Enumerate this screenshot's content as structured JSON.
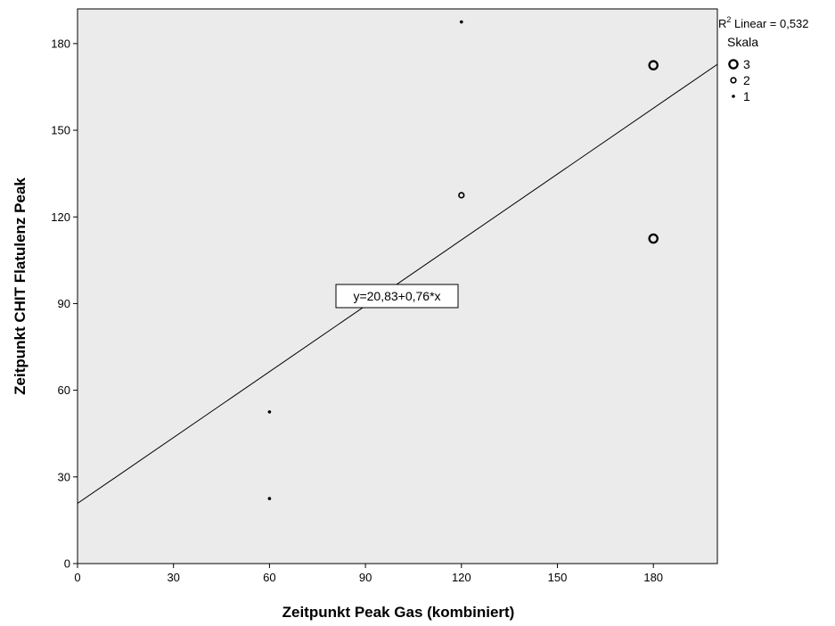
{
  "chart_data": {
    "type": "scatter",
    "xlabel": "Zeitpunkt Peak Gas (kombiniert)",
    "ylabel": "Zeitpunkt CHIT Flatulenz Peak",
    "xlim": [
      0,
      200
    ],
    "ylim": [
      0,
      192
    ],
    "x_ticks": [
      0,
      30,
      60,
      90,
      120,
      150,
      180
    ],
    "y_ticks": [
      0,
      30,
      60,
      90,
      120,
      150,
      180
    ],
    "grid": false,
    "plot_background": "#ebebeb",
    "points": [
      {
        "x": 60,
        "y": 22.5,
        "skala": 1
      },
      {
        "x": 60,
        "y": 52.5,
        "skala": 1
      },
      {
        "x": 120,
        "y": 187.5,
        "skala": 1
      },
      {
        "x": 120,
        "y": 127.5,
        "skala": 2
      },
      {
        "x": 180,
        "y": 172.5,
        "skala": 3
      },
      {
        "x": 180,
        "y": 112.5,
        "skala": 3
      }
    ],
    "fit_line": {
      "intercept": 20.83,
      "slope": 0.76
    },
    "equation_label": "y=20,83+0,76*x",
    "r2_prefix": "R",
    "r2_sup": "2",
    "r2_text": " Linear = 0,532",
    "legend": {
      "title": "Skala",
      "placement": "top-right outside",
      "entries": [
        {
          "label": "3",
          "skala": 3
        },
        {
          "label": "2",
          "skala": 2
        },
        {
          "label": "1",
          "skala": 1
        }
      ]
    }
  }
}
